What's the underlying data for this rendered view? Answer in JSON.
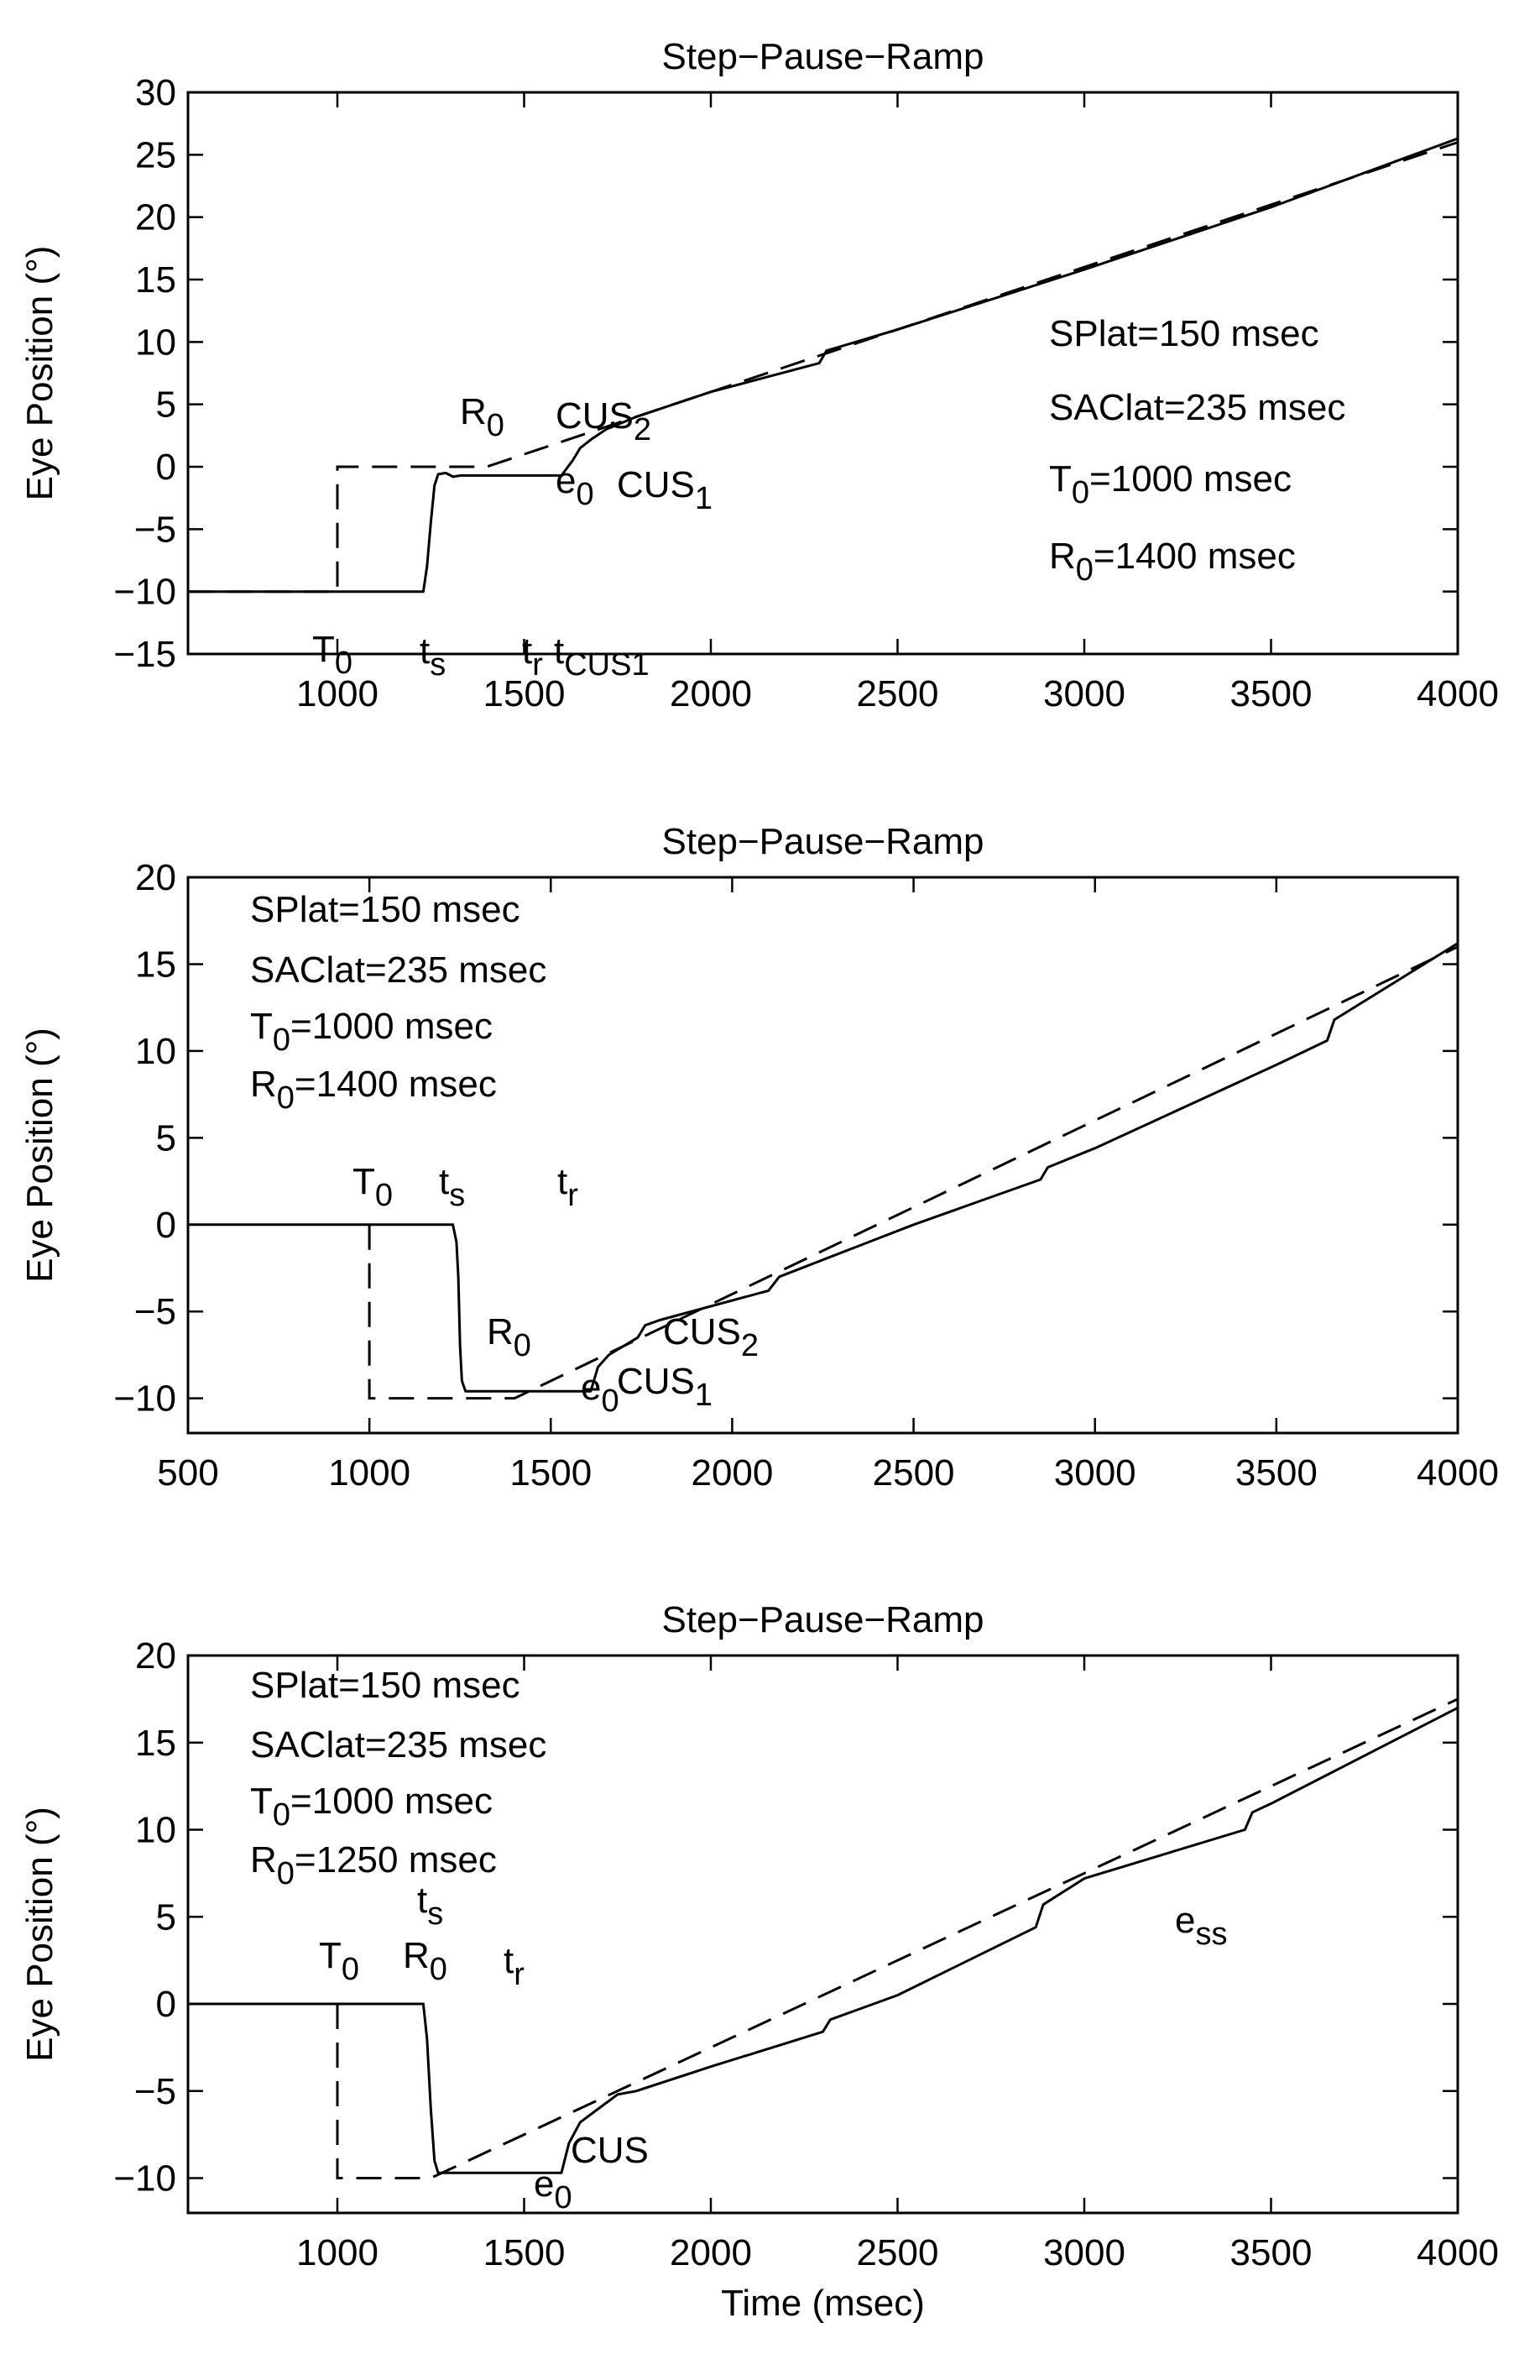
{
  "chart_data": [
    {
      "type": "line",
      "title": "Step−Pause−Ramp",
      "xlabel": "",
      "ylabel": "Eye Position (°)",
      "xlim": [
        600,
        4000
      ],
      "ylim": [
        -15,
        30
      ],
      "xticks": [
        1000,
        1500,
        2000,
        2500,
        3000,
        3500,
        4000
      ],
      "yticks": [
        30,
        25,
        20,
        15,
        10,
        5,
        0,
        -5,
        -10,
        -15
      ],
      "ytick_labels": [
        "30",
        "25",
        "20",
        "15",
        "10",
        "5",
        "0",
        "−5",
        "−10",
        "−15"
      ],
      "series": [
        {
          "style": "solid",
          "x": [
            600,
            1230,
            1240,
            1250,
            1260,
            1270,
            1290,
            1310,
            1330,
            1600,
            1630,
            1650,
            1680,
            1720,
            1760,
            1800,
            2000,
            2290,
            2310,
            2500,
            3000,
            3500,
            4000
          ],
          "y": [
            -10,
            -10,
            -8,
            -4.5,
            -1.5,
            -0.6,
            -0.5,
            -0.8,
            -0.7,
            -0.7,
            0.5,
            1.5,
            2.2,
            3.0,
            3.5,
            4.0,
            6.0,
            8.3,
            9.3,
            11.0,
            15.8,
            20.8,
            26.3
          ]
        },
        {
          "style": "dashed",
          "x": [
            600,
            1000,
            1000,
            1400,
            4000
          ],
          "y": [
            -10,
            -10,
            0,
            0,
            26
          ]
        }
      ],
      "info_lines": [
        {
          "main": "SPlat=150 msec"
        },
        {
          "main": "SAClat=235 msec"
        },
        {
          "main": "T",
          "sub": "0",
          "rest": "=1000 msec"
        },
        {
          "main": "R",
          "sub": "0",
          "rest": "=1400 msec"
        }
      ],
      "annotations": [
        {
          "main": "R",
          "sub": "0"
        },
        {
          "main": "CUS",
          "sub": "2"
        },
        {
          "main": "e",
          "sub": "0"
        },
        {
          "main": "CUS",
          "sub": "1"
        },
        {
          "main": "T",
          "sub": "0"
        },
        {
          "main": "t",
          "sub": "s"
        },
        {
          "main": "t",
          "sub": "r"
        },
        {
          "main": "t",
          "sub": "CUS1"
        }
      ]
    },
    {
      "type": "line",
      "title": "Step−Pause−Ramp",
      "xlabel": "",
      "ylabel": "Eye Position (°)",
      "xlim": [
        500,
        4000
      ],
      "ylim": [
        -12,
        20
      ],
      "xticks": [
        500,
        1000,
        1500,
        2000,
        2500,
        3000,
        3500,
        4000
      ],
      "yticks": [
        20,
        15,
        10,
        5,
        0,
        -5,
        -10
      ],
      "ytick_labels": [
        "20",
        "15",
        "10",
        "5",
        "0",
        "−5",
        "−10"
      ],
      "series": [
        {
          "style": "solid",
          "x": [
            500,
            1230,
            1240,
            1245,
            1250,
            1255,
            1265,
            1300,
            1610,
            1630,
            1660,
            1700,
            1740,
            1760,
            1800,
            2100,
            2130,
            2500,
            2850,
            2870,
            3000,
            3500,
            3640,
            3660,
            4000
          ],
          "y": [
            0,
            0,
            -1,
            -3,
            -7,
            -9,
            -9.6,
            -9.6,
            -9.6,
            -8.2,
            -7.5,
            -7.0,
            -6.5,
            -5.8,
            -5.5,
            -3.8,
            -3.0,
            0.0,
            2.6,
            3.3,
            4.4,
            9.2,
            10.6,
            11.8,
            16.2
          ]
        },
        {
          "style": "dashed",
          "x": [
            1000,
            1000,
            1400,
            4000
          ],
          "y": [
            0,
            -10,
            -10,
            16
          ]
        }
      ],
      "info_lines": [
        {
          "main": "SPlat=150 msec"
        },
        {
          "main": "SAClat=235 msec"
        },
        {
          "main": "T",
          "sub": "0",
          "rest": "=1000 msec"
        },
        {
          "main": "R",
          "sub": "0",
          "rest": "=1400 msec"
        }
      ],
      "annotations": [
        {
          "main": "T",
          "sub": "0"
        },
        {
          "main": "t",
          "sub": "s"
        },
        {
          "main": "t",
          "sub": "r"
        },
        {
          "main": "R",
          "sub": "0"
        },
        {
          "main": "CUS",
          "sub": "2"
        },
        {
          "main": "e",
          "sub": "0"
        },
        {
          "main": "CUS",
          "sub": "1"
        }
      ]
    },
    {
      "type": "line",
      "title": "Step−Pause−Ramp",
      "xlabel": "Time (msec)",
      "ylabel": "Eye Position (°)",
      "xlim": [
        600,
        4000
      ],
      "ylim": [
        -12,
        20
      ],
      "xticks": [
        1000,
        1500,
        2000,
        2500,
        3000,
        3500,
        4000
      ],
      "yticks": [
        20,
        15,
        10,
        5,
        0,
        -5,
        -10
      ],
      "ytick_labels": [
        "20",
        "15",
        "10",
        "5",
        "0",
        "−5",
        "−10"
      ],
      "series": [
        {
          "style": "solid",
          "x": [
            600,
            1230,
            1240,
            1250,
            1260,
            1270,
            1300,
            1600,
            1620,
            1650,
            1700,
            1750,
            1800,
            2000,
            2300,
            2320,
            2500,
            2870,
            2890,
            3000,
            3430,
            3450,
            3500,
            4000
          ],
          "y": [
            0,
            0,
            -2,
            -6,
            -9,
            -9.7,
            -9.7,
            -9.7,
            -8.0,
            -6.8,
            -6.0,
            -5.2,
            -5.0,
            -3.6,
            -1.6,
            -0.9,
            0.5,
            4.4,
            5.7,
            7.2,
            10.0,
            11.0,
            11.5,
            17.0
          ]
        },
        {
          "style": "dashed",
          "x": [
            1000,
            1000,
            1250,
            4000
          ],
          "y": [
            0,
            -10,
            -10,
            17.5
          ]
        }
      ],
      "info_lines": [
        {
          "main": "SPlat=150 msec"
        },
        {
          "main": "SAClat=235 msec"
        },
        {
          "main": "T",
          "sub": "0",
          "rest": "=1000 msec"
        },
        {
          "main": "R",
          "sub": "0",
          "rest": "=1250 msec"
        }
      ],
      "annotations": [
        {
          "main": "T",
          "sub": "0"
        },
        {
          "main": "t",
          "sub": "s"
        },
        {
          "main": "R",
          "sub": "0"
        },
        {
          "main": "t",
          "sub": "r"
        },
        {
          "main": "CUS"
        },
        {
          "main": "e",
          "sub": "0"
        },
        {
          "main": "e",
          "sub": "ss"
        }
      ]
    }
  ]
}
